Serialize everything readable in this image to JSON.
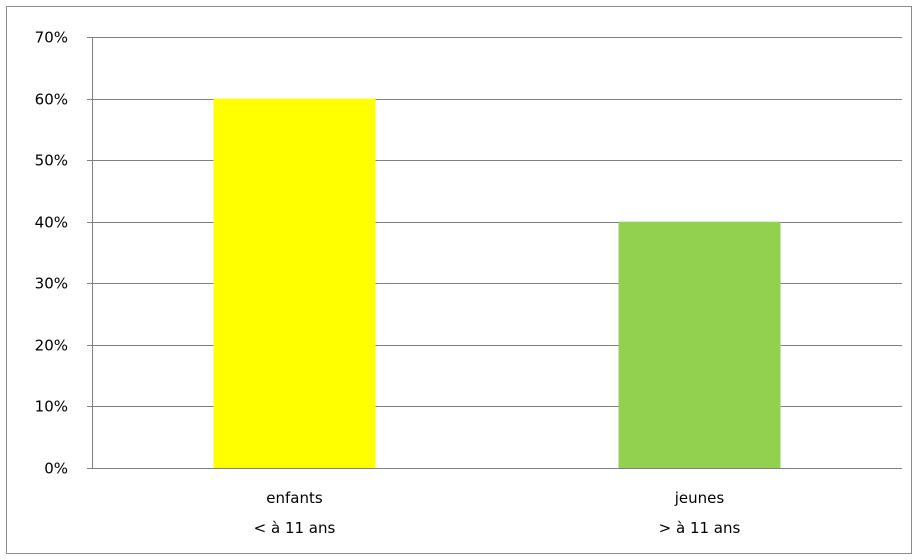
{
  "chart_data": {
    "type": "bar",
    "categories": [
      [
        "enfants",
        "< à 11 ans"
      ],
      [
        "jeunes",
        "> à 11 ans"
      ]
    ],
    "values": [
      0.6,
      0.4
    ],
    "bar_colors": [
      "#ffff00",
      "#92d050"
    ],
    "ylim": [
      0,
      0.7
    ],
    "yticks": [
      0,
      0.1,
      0.2,
      0.3,
      0.4,
      0.5,
      0.6,
      0.7
    ],
    "ytick_labels": [
      "0%",
      "10%",
      "20%",
      "30%",
      "40%",
      "50%",
      "60%",
      "70%"
    ],
    "grid": true,
    "gridline_color": "#808080",
    "title": "",
    "xlabel": "",
    "ylabel": ""
  }
}
